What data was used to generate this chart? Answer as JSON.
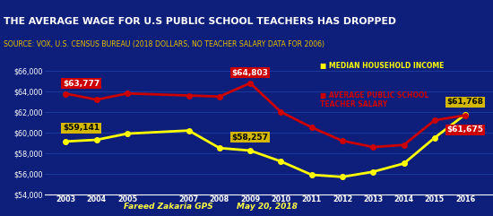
{
  "title": "THE AVERAGE WAGE FOR U.S PUBLIC SCHOOL TEACHERS HAS DROPPED",
  "subtitle": "SOURCE: VOX, U.S. CENSUS BUREAU (2018 DOLLARS, NO TEACHER SALARY DATA FOR 2006)",
  "footer_left": "Fareed Zakaria GPS",
  "footer_right": "May 20, 2018",
  "x_years": [
    2003,
    2004,
    2005,
    2007,
    2008,
    2009,
    2010,
    2011,
    2012,
    2013,
    2014,
    2015,
    2016
  ],
  "median_household": [
    59141,
    59300,
    59900,
    60200,
    58500,
    58257,
    57200,
    55900,
    55700,
    56200,
    57000,
    59500,
    61768
  ],
  "teacher_salary": [
    63777,
    63200,
    63800,
    63600,
    63500,
    64803,
    62000,
    60500,
    59200,
    58600,
    58800,
    61200,
    61675
  ],
  "ylim": [
    54000,
    67000
  ],
  "yticks": [
    54000,
    56000,
    58000,
    60000,
    62000,
    64000,
    66000
  ],
  "bg_color": "#0d1f7a",
  "title_bg": "#c8a800",
  "title_color": "#ffffff",
  "subtitle_color": "#e8c000",
  "line_yellow": "#ffff00",
  "line_red": "#cc0000",
  "label_yellow_bg": "#d4b800",
  "label_red_bg": "#cc0000",
  "label_text_color": "#ffffff",
  "axis_color": "#ffffff",
  "grid_color": "#2244aa",
  "footer_color": "#ffff44",
  "legend_yellow": "MEDIAN HOUSEHOLD INCOME",
  "legend_red": "AVERAGE PUBLIC SCHOOL\nTEACHER SALARY",
  "annotations_yellow": [
    {
      "year": 2003,
      "value": 59141,
      "label": "$59,141",
      "ha": "left",
      "xoff": -0.1,
      "yoff": 900
    },
    {
      "year": 2009,
      "value": 58257,
      "label": "$58,257",
      "ha": "center",
      "xoff": 0.0,
      "yoff": 900
    },
    {
      "year": 2016,
      "value": 61768,
      "label": "$61,768",
      "ha": "center",
      "xoff": 0.0,
      "yoff": 800
    }
  ],
  "annotations_red": [
    {
      "year": 2003,
      "value": 63777,
      "label": "$63,777",
      "ha": "left",
      "xoff": -0.1,
      "yoff": 600
    },
    {
      "year": 2009,
      "value": 64803,
      "label": "$64,803",
      "ha": "center",
      "xoff": 0.0,
      "yoff": 600
    },
    {
      "year": 2016,
      "value": 61675,
      "label": "$61,675",
      "ha": "center",
      "xoff": 0.0,
      "yoff": -1800
    }
  ]
}
